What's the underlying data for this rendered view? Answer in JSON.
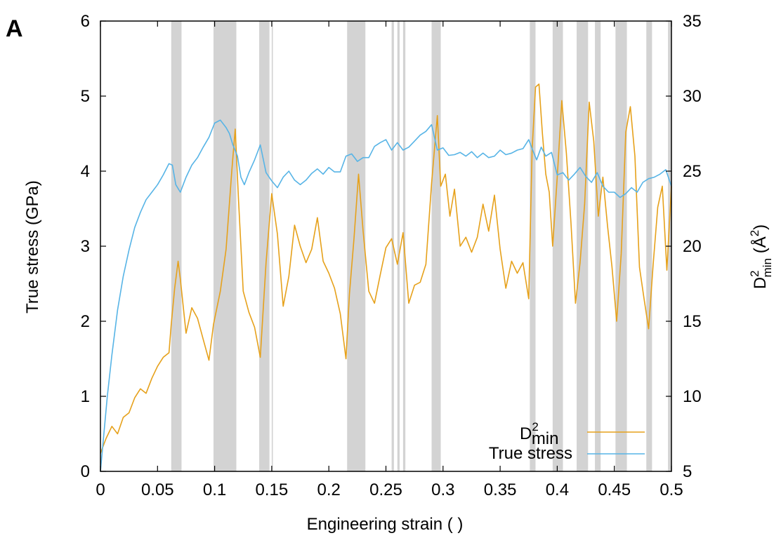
{
  "panel_label": "A",
  "chart_data": {
    "type": "line",
    "title": "",
    "xlabel": "Engineering strain ( )",
    "ylabel_left": "True stress (GPa)",
    "ylabel_right": {
      "base": "D",
      "sup": "2",
      "sub": "min",
      "unit": " (Å",
      "unit_sup": "2",
      "unit_close": ")"
    },
    "xlim": [
      0,
      0.5
    ],
    "ylim_left": [
      0,
      6
    ],
    "ylim_right": [
      5,
      35
    ],
    "x_ticks": [
      "0",
      "0.05",
      "0.1",
      "0.15",
      "0.2",
      "0.25",
      "0.3",
      "0.35",
      "0.4",
      "0.45",
      "0.5"
    ],
    "y_left_ticks": [
      "0",
      "1",
      "2",
      "3",
      "4",
      "5",
      "6"
    ],
    "y_right_ticks": [
      "5",
      "10",
      "15",
      "20",
      "25",
      "30",
      "35"
    ],
    "grid": false,
    "legend_position": "bottom-right",
    "shaded_regions": [
      [
        0.062,
        0.071
      ],
      [
        0.099,
        0.119
      ],
      [
        0.139,
        0.148
      ],
      [
        0.15,
        0.151
      ],
      [
        0.216,
        0.232
      ],
      [
        0.255,
        0.257
      ],
      [
        0.26,
        0.262
      ],
      [
        0.265,
        0.267
      ],
      [
        0.29,
        0.298
      ],
      [
        0.376,
        0.381
      ],
      [
        0.396,
        0.405
      ],
      [
        0.417,
        0.427
      ],
      [
        0.433,
        0.438
      ],
      [
        0.451,
        0.461
      ],
      [
        0.478,
        0.483
      ],
      [
        0.497,
        0.5
      ]
    ],
    "series": [
      {
        "name": "D2min",
        "legend_base": "D",
        "legend_sup": "2",
        "legend_sub": "min",
        "axis": "right",
        "color": "#e6a11b",
        "x": [
          0.0,
          0.005,
          0.01,
          0.015,
          0.02,
          0.025,
          0.03,
          0.035,
          0.04,
          0.045,
          0.05,
          0.055,
          0.06,
          0.062,
          0.065,
          0.068,
          0.07,
          0.075,
          0.08,
          0.085,
          0.09,
          0.095,
          0.099,
          0.105,
          0.11,
          0.115,
          0.118,
          0.121,
          0.125,
          0.13,
          0.135,
          0.14,
          0.145,
          0.15,
          0.155,
          0.16,
          0.165,
          0.17,
          0.175,
          0.18,
          0.185,
          0.19,
          0.195,
          0.2,
          0.205,
          0.21,
          0.215,
          0.218,
          0.222,
          0.226,
          0.23,
          0.235,
          0.24,
          0.245,
          0.25,
          0.255,
          0.26,
          0.265,
          0.27,
          0.275,
          0.28,
          0.285,
          0.29,
          0.295,
          0.298,
          0.302,
          0.306,
          0.31,
          0.315,
          0.32,
          0.325,
          0.33,
          0.335,
          0.34,
          0.345,
          0.35,
          0.355,
          0.36,
          0.365,
          0.37,
          0.375,
          0.378,
          0.381,
          0.384,
          0.387,
          0.39,
          0.393,
          0.396,
          0.4,
          0.404,
          0.408,
          0.412,
          0.416,
          0.42,
          0.424,
          0.428,
          0.432,
          0.436,
          0.44,
          0.444,
          0.448,
          0.452,
          0.456,
          0.46,
          0.464,
          0.468,
          0.472,
          0.476,
          0.48,
          0.484,
          0.488,
          0.492,
          0.496,
          0.5
        ],
        "y": [
          6.2,
          7.2,
          8.0,
          7.5,
          8.6,
          8.9,
          9.9,
          10.5,
          10.2,
          11.2,
          12.0,
          12.6,
          12.9,
          14.8,
          17.2,
          19.0,
          17.8,
          14.2,
          15.9,
          15.2,
          13.8,
          12.4,
          14.8,
          17.0,
          19.8,
          25.0,
          27.8,
          23.0,
          17.0,
          15.6,
          14.6,
          12.6,
          18.9,
          23.5,
          20.8,
          16.0,
          18.0,
          21.4,
          20.0,
          18.9,
          19.8,
          21.9,
          19.0,
          18.2,
          17.2,
          15.5,
          12.5,
          16.8,
          20.5,
          24.8,
          21.0,
          17.0,
          16.2,
          18.1,
          19.9,
          20.5,
          18.8,
          20.9,
          16.2,
          17.4,
          17.6,
          18.8,
          24.2,
          28.7,
          24.0,
          24.8,
          22.0,
          23.8,
          20.0,
          20.6,
          19.6,
          20.6,
          22.8,
          21.0,
          23.4,
          19.8,
          17.2,
          19.0,
          18.2,
          18.9,
          16.5,
          26.4,
          30.6,
          30.8,
          27.5,
          24.8,
          23.6,
          20.0,
          24.6,
          29.7,
          26.2,
          21.6,
          16.2,
          18.9,
          22.8,
          29.6,
          27.0,
          22.0,
          24.6,
          21.4,
          18.6,
          15.0,
          19.5,
          27.6,
          29.3,
          26.0,
          18.6,
          16.5,
          14.5,
          18.8,
          22.6,
          24.0,
          18.4,
          24.0
        ]
      },
      {
        "name": "True stress",
        "axis": "left",
        "color": "#57b4e6",
        "x": [
          0.0,
          0.003,
          0.006,
          0.01,
          0.015,
          0.02,
          0.025,
          0.03,
          0.035,
          0.04,
          0.045,
          0.05,
          0.055,
          0.06,
          0.063,
          0.066,
          0.07,
          0.075,
          0.08,
          0.085,
          0.09,
          0.095,
          0.1,
          0.105,
          0.11,
          0.113,
          0.116,
          0.12,
          0.123,
          0.126,
          0.13,
          0.135,
          0.14,
          0.145,
          0.15,
          0.155,
          0.16,
          0.165,
          0.17,
          0.175,
          0.18,
          0.185,
          0.19,
          0.195,
          0.2,
          0.205,
          0.21,
          0.215,
          0.22,
          0.225,
          0.23,
          0.235,
          0.24,
          0.245,
          0.25,
          0.255,
          0.26,
          0.265,
          0.27,
          0.275,
          0.28,
          0.285,
          0.29,
          0.295,
          0.3,
          0.305,
          0.31,
          0.315,
          0.32,
          0.325,
          0.33,
          0.335,
          0.34,
          0.345,
          0.35,
          0.355,
          0.36,
          0.365,
          0.37,
          0.375,
          0.378,
          0.382,
          0.386,
          0.39,
          0.395,
          0.4,
          0.405,
          0.41,
          0.415,
          0.42,
          0.425,
          0.43,
          0.435,
          0.44,
          0.445,
          0.45,
          0.455,
          0.46,
          0.465,
          0.47,
          0.475,
          0.48,
          0.485,
          0.49,
          0.495,
          0.5
        ],
        "y": [
          0.0,
          0.5,
          1.0,
          1.55,
          2.15,
          2.6,
          2.95,
          3.25,
          3.45,
          3.62,
          3.72,
          3.82,
          3.95,
          4.1,
          4.08,
          3.82,
          3.72,
          3.92,
          4.08,
          4.18,
          4.32,
          4.45,
          4.64,
          4.68,
          4.58,
          4.5,
          4.35,
          4.2,
          3.92,
          3.82,
          3.98,
          4.15,
          4.35,
          3.98,
          3.87,
          3.78,
          3.92,
          4.0,
          3.88,
          3.82,
          3.88,
          3.97,
          4.03,
          3.96,
          4.05,
          3.99,
          3.99,
          4.2,
          4.23,
          4.13,
          4.18,
          4.18,
          4.33,
          4.38,
          4.42,
          4.28,
          4.38,
          4.28,
          4.32,
          4.4,
          4.48,
          4.53,
          4.62,
          4.28,
          4.31,
          4.21,
          4.22,
          4.25,
          4.2,
          4.26,
          4.18,
          4.24,
          4.18,
          4.2,
          4.28,
          4.22,
          4.24,
          4.28,
          4.3,
          4.42,
          4.3,
          4.15,
          4.32,
          4.2,
          4.25,
          3.95,
          3.98,
          3.88,
          3.96,
          4.05,
          3.93,
          3.85,
          3.98,
          3.8,
          3.72,
          3.72,
          3.65,
          3.7,
          3.78,
          3.72,
          3.85,
          3.9,
          3.92,
          3.96,
          4.02,
          3.8
        ]
      }
    ]
  }
}
